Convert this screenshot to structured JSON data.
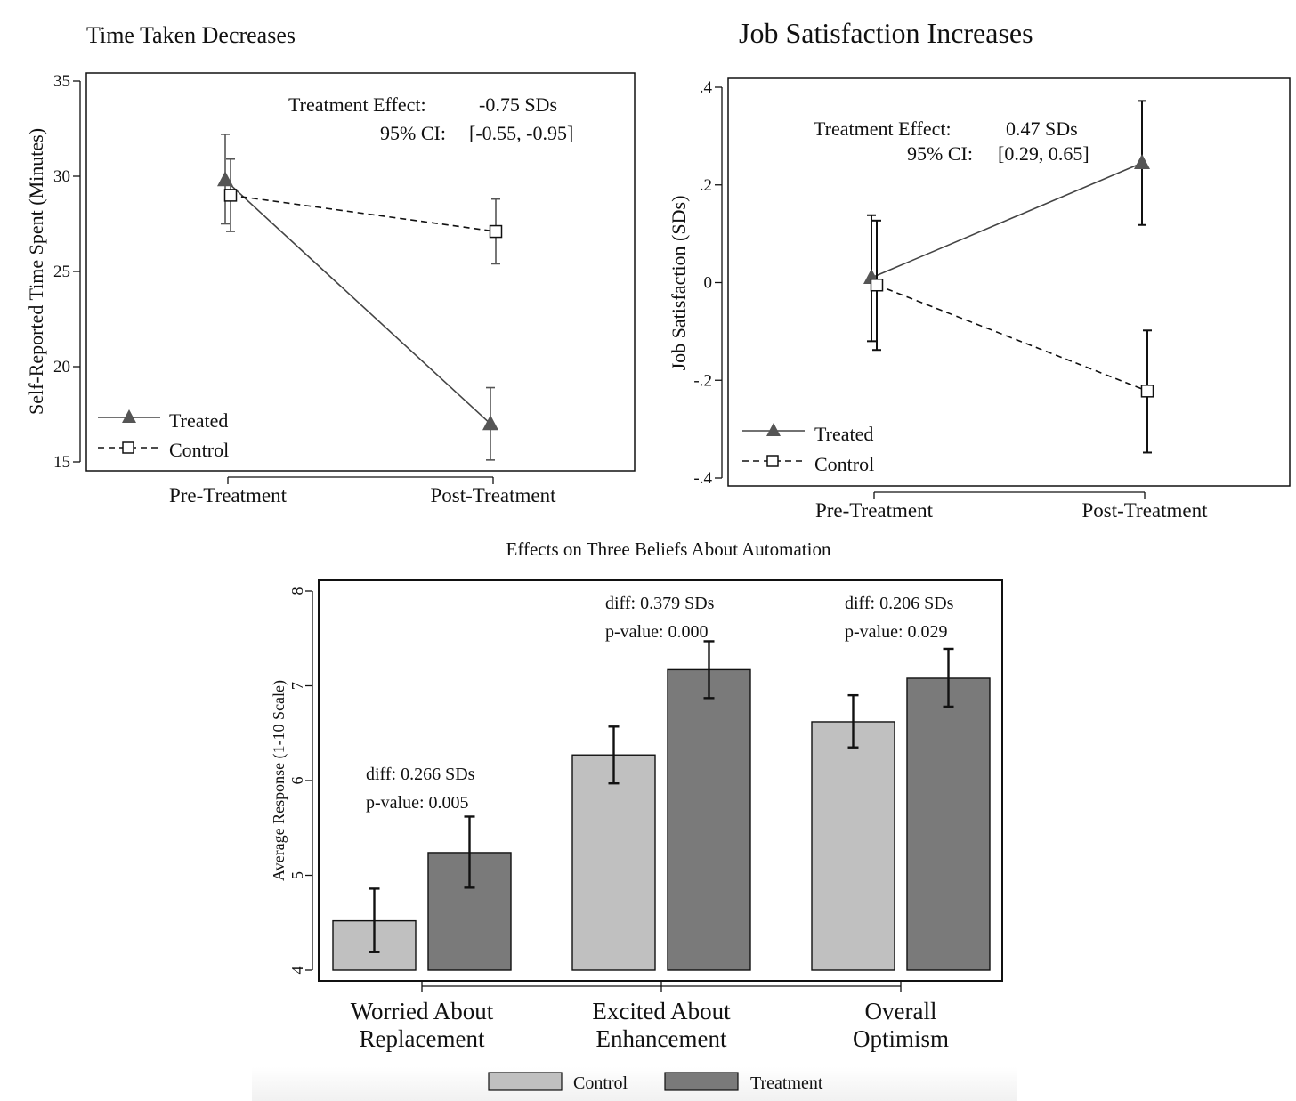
{
  "chart_data": [
    {
      "type": "line",
      "title": "Time Taken Decreases",
      "xlabel": "",
      "ylabel": "Self-Reported Time Spent (Minutes)",
      "categories": [
        "Pre-Treatment",
        "Post-Treatment"
      ],
      "ylim": [
        14.5,
        35.5
      ],
      "yticks": [
        "15",
        "20",
        "25",
        "30",
        "35"
      ],
      "ytick_values": [
        15,
        20,
        25,
        30,
        35
      ],
      "series": [
        {
          "name": "Treated",
          "values": [
            29.8,
            17.0
          ],
          "lower": [
            27.5,
            15.1
          ],
          "upper": [
            32.2,
            18.9
          ],
          "marker": "triangle",
          "line": "solid"
        },
        {
          "name": "Control",
          "values": [
            29.0,
            27.1
          ],
          "lower": [
            27.1,
            25.4
          ],
          "upper": [
            30.9,
            28.8
          ],
          "marker": "square",
          "line": "dashed"
        }
      ],
      "annotation": {
        "effect_label": "Treatment Effect:",
        "effect_value": "-0.75 SDs",
        "ci_label": "95% CI:",
        "ci_value": "[-0.55, -0.95]"
      },
      "legend": [
        "Treated",
        "Control"
      ],
      "legend_position": "bottom-left"
    },
    {
      "type": "line",
      "title": "Job Satisfaction Increases",
      "xlabel": "",
      "ylabel": "Job Satisfaction (SDs)",
      "categories": [
        "Pre-Treatment",
        "Post-Treatment"
      ],
      "ylim": [
        -0.42,
        0.42
      ],
      "yticks": [
        ".4",
        ".2",
        "0",
        "-.2",
        "-.4"
      ],
      "ytick_values": [
        0.4,
        0.2,
        0,
        -0.2,
        -0.4
      ],
      "series": [
        {
          "name": "Treated",
          "values": [
            0.01,
            0.245
          ],
          "lower": [
            -0.12,
            0.118
          ],
          "upper": [
            0.138,
            0.372
          ],
          "marker": "triangle",
          "line": "solid"
        },
        {
          "name": "Control",
          "values": [
            -0.005,
            -0.222
          ],
          "lower": [
            -0.138,
            -0.348
          ],
          "upper": [
            0.127,
            -0.098
          ],
          "marker": "square",
          "line": "dashed"
        }
      ],
      "annotation": {
        "effect_label": "Treatment Effect:",
        "effect_value": "0.47 SDs",
        "ci_label": "95% CI:",
        "ci_value": "[0.29, 0.65]"
      },
      "legend": [
        "Treated",
        "Control"
      ],
      "legend_position": "bottom-left"
    },
    {
      "type": "bar",
      "title": "Effects on Three Beliefs About Automation",
      "xlabel": "",
      "ylabel": "Average Response (1-10 Scale)",
      "categories": [
        [
          "Worried About",
          "Replacement"
        ],
        [
          "Excited About",
          "Enhancement"
        ],
        [
          "Overall",
          "Optimism"
        ]
      ],
      "ylim": [
        3.9,
        8.1
      ],
      "yticks": [
        "4",
        "5",
        "6",
        "7",
        "8"
      ],
      "ytick_values": [
        4,
        5,
        6,
        7,
        8
      ],
      "series": [
        {
          "name": "Control",
          "values": [
            4.52,
            6.27,
            6.62
          ],
          "lower": [
            4.19,
            5.97,
            6.35
          ],
          "upper": [
            4.86,
            6.57,
            6.9
          ],
          "color": "#c0c0c0"
        },
        {
          "name": "Treatment",
          "values": [
            5.24,
            7.17,
            7.08
          ],
          "lower": [
            4.87,
            6.87,
            6.78
          ],
          "upper": [
            5.62,
            7.47,
            7.39
          ],
          "color": "#7a7a7a"
        }
      ],
      "annotations": [
        {
          "diff": "diff: 0.266 SDs",
          "pvalue": "p-value: 0.005"
        },
        {
          "diff": "diff: 0.379 SDs",
          "pvalue": "p-value: 0.000"
        },
        {
          "diff": "diff: 0.206 SDs",
          "pvalue": "p-value: 0.029"
        }
      ],
      "legend": [
        "Control",
        "Treatment"
      ],
      "legend_position": "bottom"
    }
  ]
}
